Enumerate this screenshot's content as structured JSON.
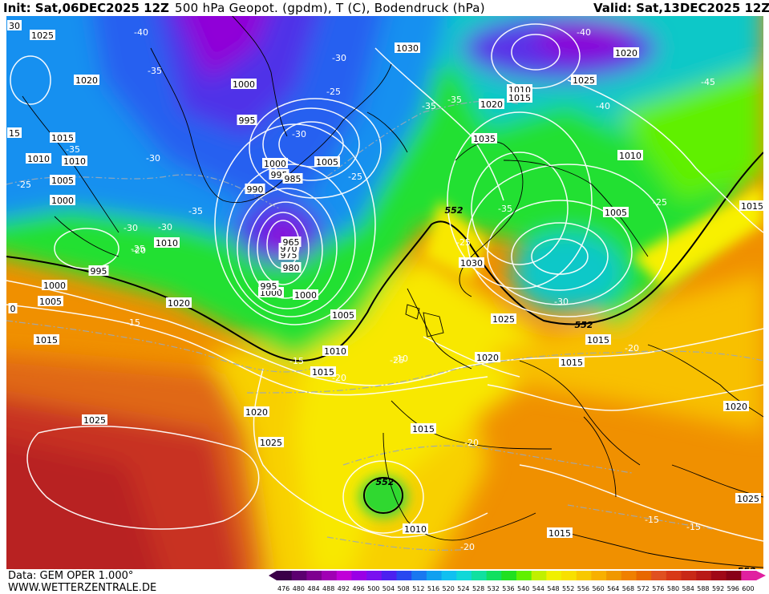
{
  "header": {
    "init": "Init: Sat,06DEC2025 12Z",
    "title": "500 hPa Geopot. (gpdm), T (C), Bodendruck (hPa)",
    "valid": "Valid: Sat,13DEC2025 12Z"
  },
  "footer": {
    "data_source": "Data: GEM OPER 1.000°",
    "website": "WWW.WETTERZENTRALE.DE"
  },
  "legend": {
    "ticks": [
      "476",
      "480",
      "484",
      "488",
      "492",
      "496",
      "500",
      "504",
      "508",
      "512",
      "516",
      "520",
      "524",
      "528",
      "532",
      "536",
      "540",
      "544",
      "548",
      "552",
      "556",
      "560",
      "564",
      "568",
      "572",
      "576",
      "580",
      "584",
      "588",
      "592",
      "596",
      "600"
    ],
    "colors": [
      "#3a0048",
      "#5c0070",
      "#7e0090",
      "#a000b4",
      "#c000d8",
      "#9a00e6",
      "#7a10f0",
      "#4c20f0",
      "#2848f0",
      "#1a78f0",
      "#10a0f0",
      "#10c0f0",
      "#10d8d8",
      "#10e0a0",
      "#10e060",
      "#20e020",
      "#60f000",
      "#c0f000",
      "#f0f000",
      "#f8e000",
      "#f8c800",
      "#f8b000",
      "#f09800",
      "#f08000",
      "#e86800",
      "#e05020",
      "#d83818",
      "#c82818",
      "#b81818",
      "#a00818",
      "#880018",
      "#e020a0"
    ]
  },
  "pressure_labels": [
    "1025",
    "1020",
    "1015",
    "1010",
    "1005",
    "1000",
    "995",
    "1000",
    "995",
    "1000",
    "1010",
    "1005",
    "1000",
    "995",
    "990",
    "985",
    "980",
    "975",
    "970",
    "965",
    "1005",
    "1000",
    "995",
    "1000",
    "1005",
    "1010",
    "1015",
    "1020",
    "1025",
    "1030",
    "1035",
    "1030",
    "1025",
    "1020",
    "1015",
    "1010",
    "1005",
    "1010",
    "1015",
    "1020",
    "1025",
    "1020",
    "1015",
    "1010",
    "1015",
    "1020",
    "1025",
    "1025",
    "1020",
    "1015",
    "1010",
    "1015",
    "1015",
    "30",
    "15",
    "0"
  ],
  "temp_labels": [
    "-40",
    "-40",
    "-35",
    "-30",
    "-35",
    "-30",
    "-35",
    "-35",
    "-30",
    "-25",
    "-25",
    "-30",
    "-35",
    "-40",
    "-45",
    "-25",
    "-25",
    "-35",
    "-30",
    "-25",
    "-30",
    "-25",
    "-20",
    "-20",
    "-15",
    "-25",
    "-20",
    "-20",
    "-15",
    "-15",
    "-10",
    "-15",
    "-20"
  ],
  "height_labels": [
    "552",
    "552",
    "552",
    "552"
  ]
}
